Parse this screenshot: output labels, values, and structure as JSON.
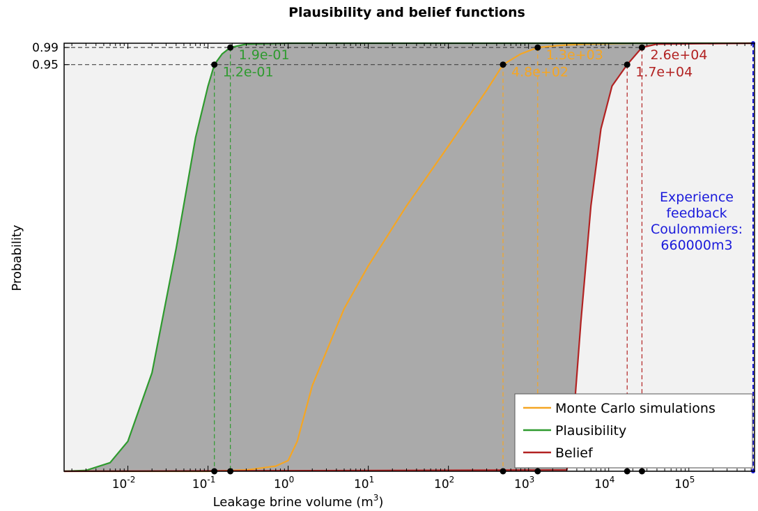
{
  "chart_data": {
    "type": "line",
    "title": "Plausibility and belief functions",
    "xlabel": "Leakage brine volume (m",
    "xlabel_sup": "3",
    "xlabel_end": ")",
    "ylabel": "Probability",
    "x_scale": "log",
    "xlim": [
      0.0016,
      660000
    ],
    "ylim": [
      0,
      1
    ],
    "x_ticks": [
      {
        "base": "10",
        "exp": "-2",
        "value": 0.01
      },
      {
        "base": "10",
        "exp": "-1",
        "value": 0.1
      },
      {
        "base": "10",
        "exp": "0",
        "value": 1
      },
      {
        "base": "10",
        "exp": "1",
        "value": 10
      },
      {
        "base": "10",
        "exp": "2",
        "value": 100
      },
      {
        "base": "10",
        "exp": "3",
        "value": 1000
      },
      {
        "base": "10",
        "exp": "4",
        "value": 10000
      },
      {
        "base": "10",
        "exp": "5",
        "value": 100000
      }
    ],
    "y_ticks": [
      {
        "label": "0.99",
        "value": 0.99
      },
      {
        "label": "0.95",
        "value": 0.95
      }
    ],
    "grid": false,
    "legend_position": "bottom-right",
    "band_color": "#aaaaaa",
    "background_color": "#f2f2f2",
    "series": [
      {
        "name": "Monte Carlo simulations",
        "color": "#f5a623",
        "x": [
          0.0016,
          0.01,
          0.1,
          0.3,
          0.7,
          1.0,
          1.3,
          2,
          5,
          10,
          30,
          100,
          300,
          480,
          800,
          1300,
          2500,
          5000,
          20000,
          660000
        ],
        "y": [
          0,
          0,
          0,
          0.003,
          0.012,
          0.025,
          0.07,
          0.2,
          0.38,
          0.48,
          0.62,
          0.76,
          0.89,
          0.95,
          0.975,
          0.99,
          0.995,
          0.998,
          1.0,
          1.0
        ]
      },
      {
        "name": "Plausibility",
        "color": "#2e9a2e",
        "x": [
          0.0016,
          0.003,
          0.006,
          0.01,
          0.02,
          0.04,
          0.07,
          0.1,
          0.12,
          0.15,
          0.19,
          0.3,
          1,
          660000
        ],
        "y": [
          0,
          0.002,
          0.02,
          0.07,
          0.23,
          0.52,
          0.78,
          0.9,
          0.95,
          0.975,
          0.99,
          0.998,
          1.0,
          1.0
        ]
      },
      {
        "name": "Belief",
        "color": "#b22222",
        "x": [
          0.0016,
          3000,
          3500,
          4500,
          6000,
          8000,
          11000,
          17000,
          26000,
          40000,
          660000
        ],
        "y": [
          0,
          0.003,
          0.08,
          0.35,
          0.62,
          0.8,
          0.9,
          0.95,
          0.99,
          0.998,
          1.0
        ]
      }
    ],
    "reference_line": {
      "x": 660000,
      "color": "#1a1adb",
      "label_lines": [
        "Experience",
        "feedback",
        "Coulommiers:",
        "660000m3"
      ]
    },
    "quantile_points": [
      {
        "x": 0.19,
        "y": 0.99,
        "label": "1.9e-01",
        "color": "#2e9a2e"
      },
      {
        "x": 0.12,
        "y": 0.95,
        "label": "1.2e-01",
        "color": "#2e9a2e"
      },
      {
        "x": 1300,
        "y": 0.99,
        "label": "1.3e+03",
        "color": "#f5a623"
      },
      {
        "x": 480,
        "y": 0.95,
        "label": "4.8e+02",
        "color": "#f5a623"
      },
      {
        "x": 26000,
        "y": 0.99,
        "label": "2.6e+04",
        "color": "#b22222"
      },
      {
        "x": 17000,
        "y": 0.95,
        "label": "1.7e+04",
        "color": "#b22222"
      }
    ]
  }
}
